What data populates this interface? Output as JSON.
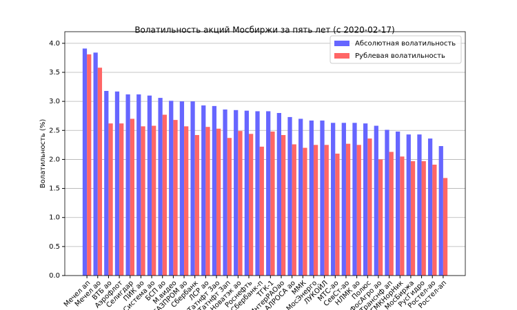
{
  "chart_data": {
    "type": "bar",
    "title": "Волатильность акций Мосбиржи за пять лет (с 2020-02-17)",
    "y_label": "Волатильность (%)",
    "categories": [
      "Мечел ап",
      "Мечел ао",
      "ВТБ ао",
      "Аэрофлот",
      "Селигдар",
      "ПИК ао",
      "Система ао",
      "БСП ао",
      "М.видео",
      "ГАЗПРОМ ао",
      "Сбербанк",
      "ЛСР ао",
      "Татнфт 3ао",
      "Татнфт 3ап",
      "Новатэк ао",
      "Роснефть",
      "Сбербанк-п",
      "ТГК-1",
      "ИнтерРАОао",
      "АЛРОСА ао",
      "ММК",
      "МосЭнерго",
      "ЛУКОЙЛ",
      "МТС-ао",
      "СевСт-ао",
      "НЛМК ао",
      "Полюс",
      "ФосАгро ао",
      "Транснф ап",
      "ГМКНорНик",
      "МосБиржа",
      "РусГидро",
      "Ростел-ао",
      "Ростел-ап"
    ],
    "series": [
      {
        "name": "Абсолютная волатильность",
        "color": "#6666ff",
        "values": [
          3.91,
          3.84,
          3.18,
          3.17,
          3.12,
          3.12,
          3.1,
          3.06,
          3.01,
          3.0,
          3.0,
          2.93,
          2.92,
          2.86,
          2.85,
          2.84,
          2.83,
          2.83,
          2.8,
          2.73,
          2.7,
          2.67,
          2.67,
          2.63,
          2.63,
          2.63,
          2.62,
          2.58,
          2.51,
          2.48,
          2.43,
          2.43,
          2.36,
          2.23
        ]
      },
      {
        "name": "Рублевая волатильность",
        "color": "#ff6666",
        "values": [
          3.81,
          3.58,
          2.62,
          2.62,
          2.7,
          2.57,
          2.58,
          2.77,
          2.68,
          2.57,
          2.42,
          2.56,
          2.53,
          2.37,
          2.49,
          2.44,
          2.22,
          2.48,
          2.42,
          2.26,
          2.2,
          2.25,
          2.25,
          2.1,
          2.27,
          2.25,
          2.36,
          2.0,
          2.13,
          2.05,
          1.97,
          1.97,
          1.91,
          1.68
        ]
      }
    ],
    "ylim": [
      0,
      4.2
    ],
    "yticks": [
      {
        "value": 0,
        "label": "0.0"
      },
      0.5,
      {
        "value": 1,
        "label": "1.0"
      },
      1.5,
      {
        "value": 2,
        "label": "2.0"
      },
      2.5,
      {
        "value": 3,
        "label": "3.0"
      },
      3.5,
      {
        "value": 4,
        "label": "4.0"
      }
    ],
    "grid": true,
    "legend": "upper-right"
  }
}
